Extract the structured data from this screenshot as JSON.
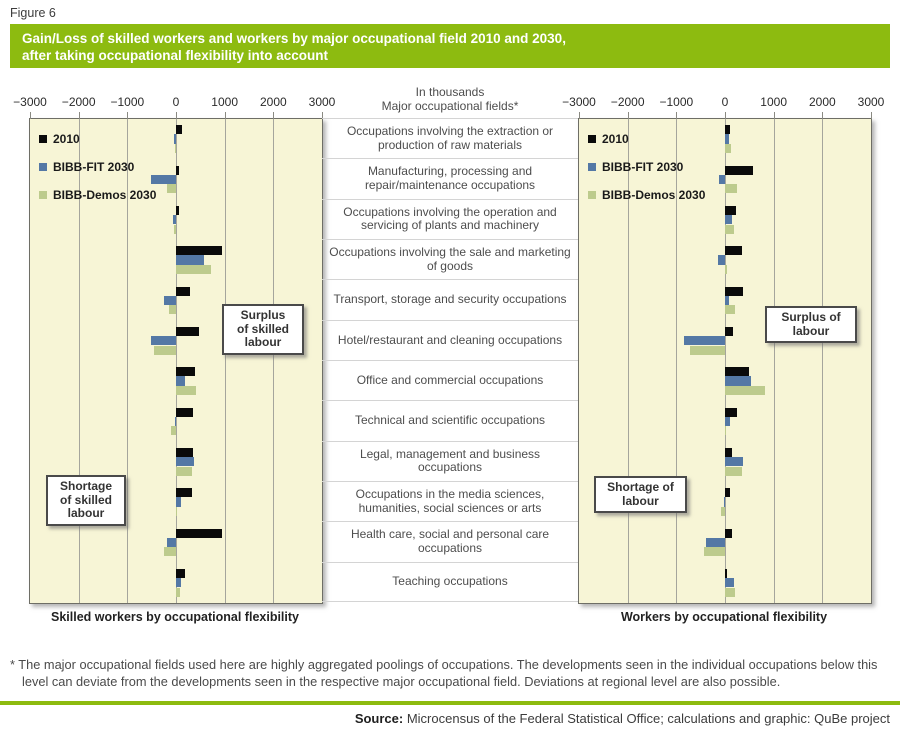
{
  "figure_label": "Figure 6",
  "title": {
    "line1": "Gain/Loss of skilled workers and workers by major occupational field 2010 and 2030,",
    "line2": "after taking occupational flexibility into account"
  },
  "colors": {
    "accent_green": "#8dbb10",
    "plot_background": "#f7f5d6",
    "gridline": "#a5a59c",
    "series_2010": "#0a0a0a",
    "series_fit": "#5478a5",
    "series_demos": "#bdcb8d"
  },
  "legend": [
    {
      "label": "2010",
      "color": "#0a0a0a"
    },
    {
      "label": "BIBB-FIT 2030",
      "color": "#5478a5"
    },
    {
      "label": "BIBB-Demos 2030",
      "color": "#bdcb8d"
    }
  ],
  "middle": {
    "header_line1": "In thousands",
    "header_line2": "Major occupational fields*",
    "categories": [
      "Occupations involving the extraction or production of raw materials",
      "Manufacturing, processing and repair/maintenance occupations",
      "Occupations involving the operation and servicing of plants and machinery",
      "Occupations involving the sale and marketing of goods",
      "Transport, storage and security occupations",
      "Hotel/restaurant and cleaning occupations",
      "Office and commercial occupations",
      "Technical and scientific occupations",
      "Legal, management and business occupations",
      "Occupations in the media sciences, humanities, social sciences or arts",
      "Health care, social and personal care occupations",
      "Teaching occupations"
    ]
  },
  "chart_data": [
    {
      "type": "bar",
      "orientation": "horizontal",
      "caption": "Skilled workers by occupational flexibility",
      "unit": "thousands",
      "xlim": [
        -3000,
        3000
      ],
      "x_ticks": [
        -3000,
        -2000,
        -1000,
        0,
        1000,
        2000,
        3000
      ],
      "x_tick_labels": [
        "−3000",
        "−2000",
        "−1000",
        "0",
        "1000",
        "2000",
        "3000"
      ],
      "grid": true,
      "legend_position": "top-left-inside",
      "categories": [
        "Occupations involving the extraction or production of raw materials",
        "Manufacturing, processing and repair/maintenance occupations",
        "Occupations involving the operation and servicing of plants and machinery",
        "Occupations involving the sale and marketing of goods",
        "Transport, storage and security occupations",
        "Hotel/restaurant and cleaning occupations",
        "Office and commercial occupations",
        "Technical and scientific occupations",
        "Legal, management and business occupations",
        "Occupations in the media sciences, humanities, social sciences or arts",
        "Health care, social and personal care occupations",
        "Teaching occupations"
      ],
      "series": [
        {
          "name": "2010",
          "color": "#0a0a0a",
          "values": [
            120,
            70,
            60,
            950,
            280,
            470,
            390,
            350,
            350,
            320,
            950,
            175
          ]
        },
        {
          "name": "BIBB-FIT 2030",
          "color": "#5478a5",
          "values": [
            -50,
            -520,
            -70,
            570,
            -240,
            -520,
            190,
            -15,
            380,
            110,
            -190,
            110
          ]
        },
        {
          "name": "BIBB-Demos 2030",
          "color": "#bdcb8d",
          "values": [
            -20,
            -180,
            -40,
            715,
            -150,
            -450,
            420,
            -105,
            320,
            20,
            -250,
            90
          ]
        }
      ],
      "annotations": [
        {
          "text": "Surplus\nof skilled\nlabour"
        },
        {
          "text": "Shortage\nof skilled\nlabour"
        }
      ]
    },
    {
      "type": "bar",
      "orientation": "horizontal",
      "caption": "Workers by occupational flexibility",
      "unit": "thousands",
      "xlim": [
        -3000,
        3000
      ],
      "x_ticks": [
        -3000,
        -2000,
        -1000,
        0,
        1000,
        2000,
        3000
      ],
      "x_tick_labels": [
        "−3000",
        "−2000",
        "−1000",
        "0",
        "1000",
        "2000",
        "3000"
      ],
      "grid": true,
      "legend_position": "top-left-inside",
      "categories": [
        "Occupations involving the extraction or production of raw materials",
        "Manufacturing, processing and repair/maintenance occupations",
        "Occupations involving the operation and servicing of plants and machinery",
        "Occupations involving the sale and marketing of goods",
        "Transport, storage and security occupations",
        "Hotel/restaurant and cleaning occupations",
        "Office and commercial occupations",
        "Technical and scientific occupations",
        "Legal, management and business occupations",
        "Occupations in the media sciences, humanities, social sciences or arts",
        "Health care, social and personal care occupations",
        "Teaching occupations"
      ],
      "series": [
        {
          "name": "2010",
          "color": "#0a0a0a",
          "values": [
            110,
            580,
            225,
            340,
            375,
            155,
            490,
            245,
            145,
            95,
            145,
            35
          ]
        },
        {
          "name": "BIBB-FIT 2030",
          "color": "#5478a5",
          "values": [
            85,
            -125,
            140,
            -145,
            90,
            -840,
            540,
            100,
            370,
            -15,
            -385,
            175
          ]
        },
        {
          "name": "BIBB-Demos 2030",
          "color": "#bdcb8d",
          "values": [
            125,
            245,
            190,
            40,
            200,
            -720,
            820,
            30,
            350,
            -75,
            -425,
            210
          ]
        }
      ],
      "annotations": [
        {
          "text": "Surplus of\nlabour"
        },
        {
          "text": "Shortage of\nlabour"
        }
      ]
    }
  ],
  "footnote": "* The major occupational fields used here are highly aggregated poolings of occupations. The developments seen in the individual occupations below this level can deviate from the developments seen in the respective major occupational field. Deviations at regional level are also possible.",
  "source_label": "Source:",
  "source_text": " Microcensus of the Federal Statistical Office; calculations and graphic: QuBe project"
}
